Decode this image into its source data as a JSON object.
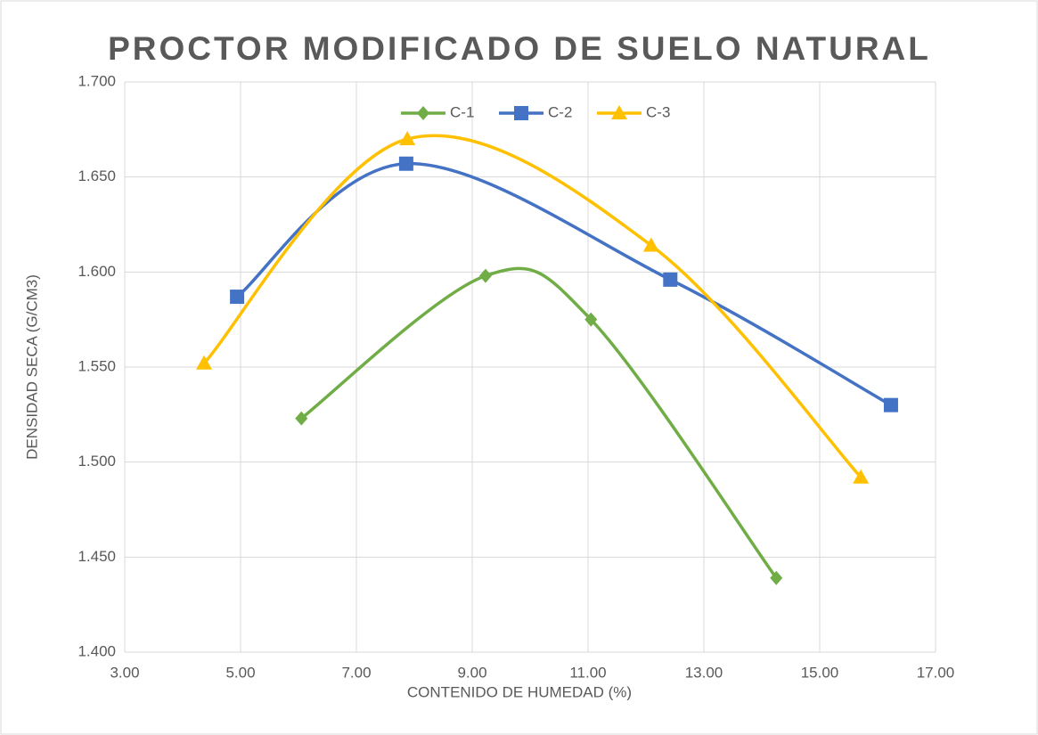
{
  "chart_data": {
    "type": "scatter",
    "title": "PROCTOR MODIFICADO DE SUELO NATURAL",
    "x_label": "CONTENIDO DE HUMEDAD (%)",
    "y_label": "DENSIDAD SECA (G/CM3)",
    "xlim": [
      3,
      17
    ],
    "xticks": [
      {
        "value": 3,
        "label": "3.00"
      },
      {
        "value": 5,
        "label": "5.00"
      },
      {
        "value": 7,
        "label": "7.00"
      },
      {
        "value": 9,
        "label": "9.00"
      },
      {
        "value": 11,
        "label": "11.00"
      },
      {
        "value": 13,
        "label": "13.00"
      },
      {
        "value": 15,
        "label": "15.00"
      },
      {
        "value": 17,
        "label": "17.00"
      }
    ],
    "ylim": [
      1.4,
      1.7
    ],
    "yticks": [
      {
        "value": 1.4,
        "label": "1.400"
      },
      {
        "value": 1.45,
        "label": "1.450"
      },
      {
        "value": 1.5,
        "label": "1.500"
      },
      {
        "value": 1.55,
        "label": "1.550"
      },
      {
        "value": 1.6,
        "label": "1.600"
      },
      {
        "value": 1.65,
        "label": "1.650"
      },
      {
        "value": 1.7,
        "label": "1.700"
      }
    ],
    "grid": true,
    "smooth": true,
    "legend": "top",
    "series": [
      {
        "name": "C-1",
        "color": "#70ad47",
        "marker": "diamond",
        "x": [
          6.05,
          9.23,
          11.05,
          14.25
        ],
        "values": [
          1.523,
          1.598,
          1.575,
          1.439
        ]
      },
      {
        "name": "C-2",
        "color": "#4472c4",
        "marker": "square",
        "x": [
          4.94,
          7.86,
          12.42,
          16.23
        ],
        "values": [
          1.587,
          1.657,
          1.596,
          1.53
        ]
      },
      {
        "name": "C-3",
        "color": "#ffc000",
        "marker": "triangle",
        "x": [
          4.37,
          7.88,
          12.09,
          15.71
        ],
        "values": [
          1.552,
          1.67,
          1.614,
          1.492
        ]
      }
    ]
  }
}
